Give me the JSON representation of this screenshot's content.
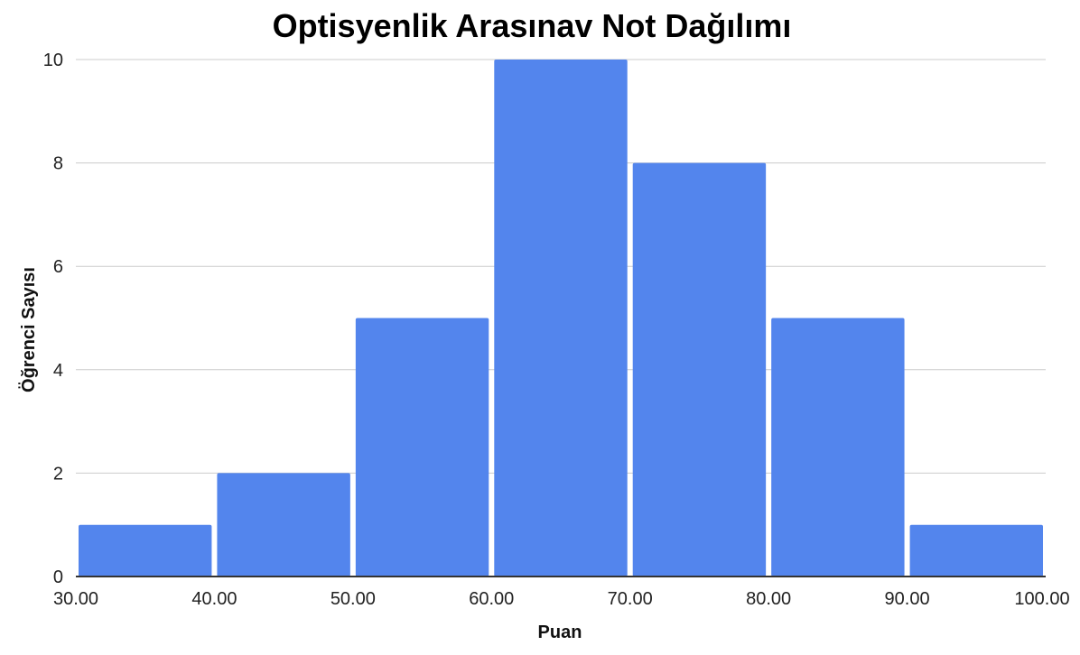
{
  "chart_data": {
    "type": "bar",
    "title": "Optisyenlik Arasınav Not Dağılımı",
    "xlabel": "Puan",
    "ylabel": "Öğrenci Sayısı",
    "bins": [
      {
        "start": 30,
        "end": 40,
        "value": 1
      },
      {
        "start": 40,
        "end": 50,
        "value": 2
      },
      {
        "start": 50,
        "end": 60,
        "value": 5
      },
      {
        "start": 60,
        "end": 70,
        "value": 10
      },
      {
        "start": 70,
        "end": 80,
        "value": 8
      },
      {
        "start": 80,
        "end": 90,
        "value": 5
      },
      {
        "start": 90,
        "end": 100,
        "value": 1
      }
    ],
    "x_ticks": [
      "30.00",
      "40.00",
      "50.00",
      "60.00",
      "70.00",
      "80.00",
      "90.00",
      "100.00"
    ],
    "y_ticks": [
      "0",
      "2",
      "4",
      "6",
      "8",
      "10"
    ],
    "xlim": [
      30,
      100
    ],
    "ylim": [
      0,
      10
    ],
    "grid": true,
    "bar_color": "#5385ED"
  }
}
